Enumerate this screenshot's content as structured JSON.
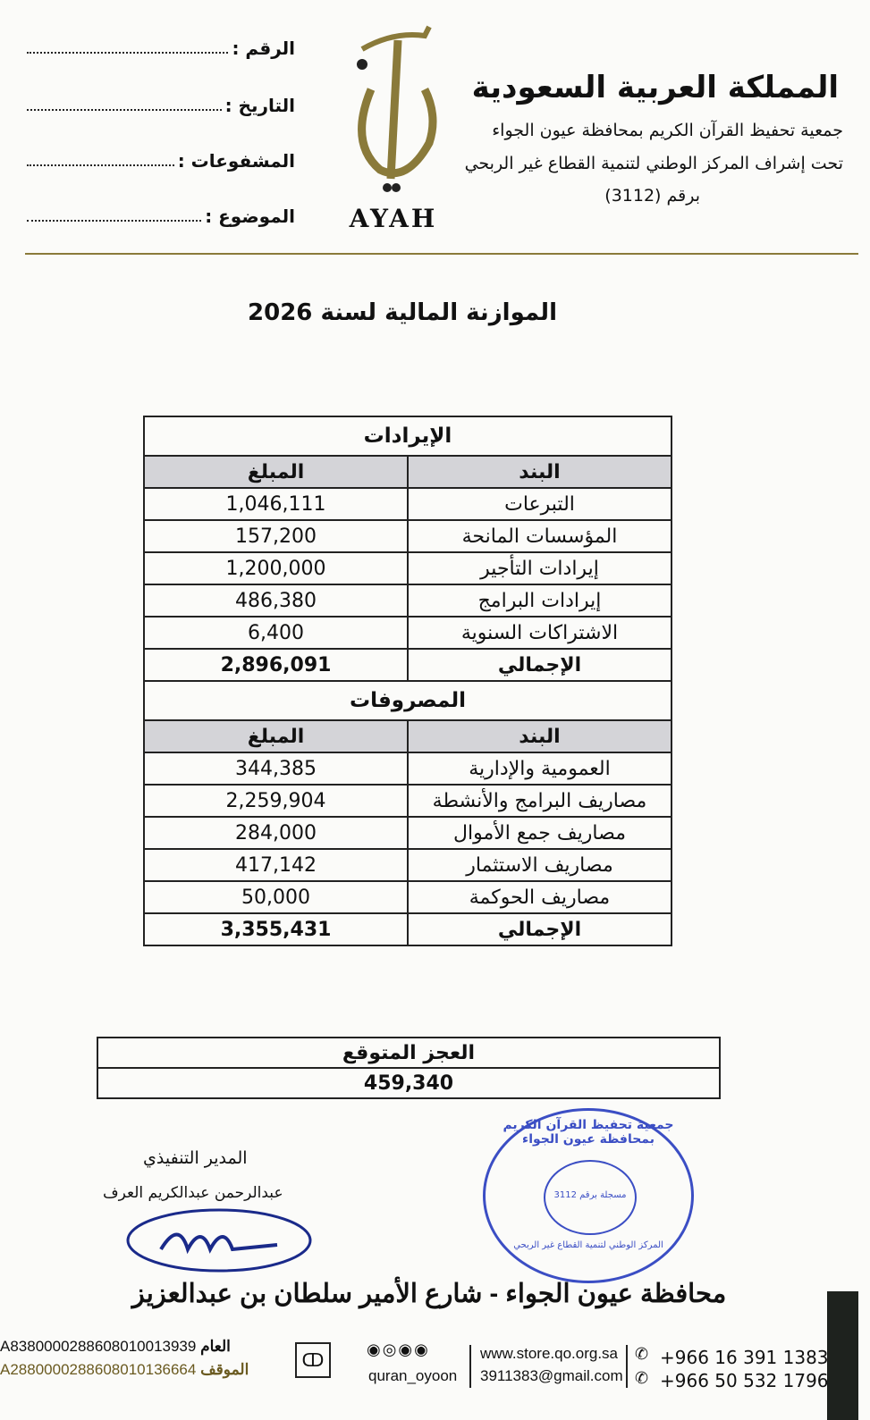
{
  "header": {
    "title": "المملكة العربية السعودية",
    "line1": "جمعية تحفيظ القرآن الكريم بمحافظة عيون الجواء",
    "line2": "تحت إشراف المركز الوطني لتنمية القطاع غير الربحي",
    "line3": "برقم (3112)",
    "logo_text": "AYAH",
    "fields": [
      "الرقم :",
      "التاريخ :",
      "المشفوعات :",
      "الموضوع :"
    ]
  },
  "doc_title": "الموازنة المالية لسنة 2026",
  "revenues": {
    "title": "الإيرادات",
    "col_item": "البند",
    "col_amount": "المبلغ",
    "rows": [
      {
        "item": "التبرعات",
        "amount": "1,046,111"
      },
      {
        "item": "المؤسسات المانحة",
        "amount": "157,200"
      },
      {
        "item": "إيرادات التأجير",
        "amount": "1,200,000"
      },
      {
        "item": "إيرادات البرامج",
        "amount": "486,380"
      },
      {
        "item": "الاشتراكات السنوية",
        "amount": "6,400"
      }
    ],
    "total": {
      "item": "الإجمالي",
      "amount": "2,896,091"
    }
  },
  "expenses": {
    "title": "المصروفات",
    "col_item": "البند",
    "col_amount": "المبلغ",
    "rows": [
      {
        "item": "العمومية والإدارية",
        "amount": "344,385"
      },
      {
        "item": "مصاريف البرامج والأنشطة",
        "amount": "2,259,904"
      },
      {
        "item": "مصاريف جمع الأموال",
        "amount": "284,000"
      },
      {
        "item": "مصاريف الاستثمار",
        "amount": "417,142"
      },
      {
        "item": "مصاريف الحوكمة",
        "amount": "50,000"
      }
    ],
    "total": {
      "item": "الإجمالي",
      "amount": "3,355,431"
    }
  },
  "deficit": {
    "label": "العجز المتوقع",
    "amount": "459,340"
  },
  "signature": {
    "role": "المدير التنفيذي",
    "name": "عبدالرحمن عبدالكريم العرف"
  },
  "stamp": {
    "text": "جمعية تحفيظ القرآن الكريم بمحافظة عيون الجواء",
    "sub": "المركز الوطني لتنمية القطاع غير الربحي",
    "reg": "مسجلة برقم 3112"
  },
  "footer": {
    "address": "محافظة عيون الجواء - شارع الأمير سلطان بن عبدالعزيز",
    "iban_general_label": "العام",
    "iban_general": "A8380000288608010013939",
    "iban_waqf_label": "الموقف",
    "iban_waqf": "A2880000288608010136664",
    "social": "quran_oyoon",
    "website": "www.store.qo.org.sa",
    "email": "3911383@gmail.com",
    "phone1": "+966 16 391 1383",
    "phone2": "+966 50 532 1796"
  },
  "colors": {
    "gold": "#8a7a3a",
    "stamp_blue": "#3b4ec4",
    "header_fill": "#d4d4d8"
  }
}
